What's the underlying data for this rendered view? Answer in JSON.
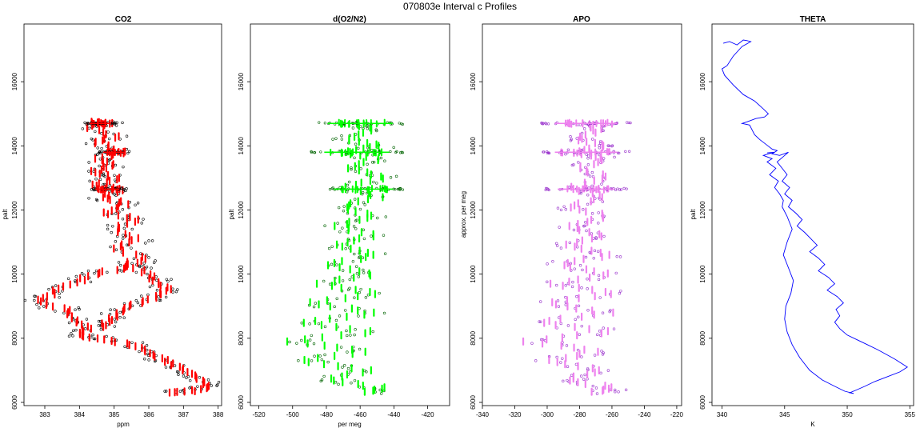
{
  "title": "070803e   Interval c Profiles",
  "chart_data": [
    {
      "type": "scatter",
      "title": "CO2",
      "xlabel": "ppm",
      "ylabel": "palt",
      "xlim": [
        382.4,
        388.1
      ],
      "ylim": [
        5900,
        17800
      ],
      "xticks": [
        "383",
        "384",
        "385",
        "386",
        "387",
        "388"
      ],
      "yticks": [
        "6000",
        "8000",
        "10000",
        "12000",
        "14000",
        "16000"
      ],
      "colors": {
        "mark": "#ff0000",
        "point": "#000000"
      },
      "segments": [
        {
          "start": [
            384.3,
            14750
          ],
          "path": [
            [
              385.0,
              14700
            ],
            [
              384.2,
              14600
            ],
            [
              385.1,
              14300
            ],
            [
              384.5,
              14100
            ],
            [
              385.3,
              13800
            ],
            [
              384.4,
              13600
            ],
            [
              385.0,
              13400
            ],
            [
              384.3,
              13200
            ],
            [
              385.1,
              13000
            ],
            [
              384.4,
              12800
            ],
            [
              385.2,
              12650
            ],
            [
              384.6,
              12400
            ],
            [
              385.4,
              12200
            ],
            [
              384.8,
              11900
            ],
            [
              385.7,
              11700
            ],
            [
              385.0,
              11400
            ],
            [
              385.7,
              11100
            ],
            [
              385.0,
              10800
            ],
            [
              385.9,
              10500
            ],
            [
              385.3,
              10200
            ],
            [
              384.4,
              10000
            ],
            [
              383.8,
              9700
            ],
            [
              383.2,
              9400
            ],
            [
              382.8,
              9150
            ],
            [
              383.6,
              8900
            ],
            [
              383.9,
              8600
            ],
            [
              384.2,
              8300
            ],
            [
              384.0,
              8100
            ],
            [
              384.8,
              7950
            ],
            [
              385.6,
              7750
            ],
            [
              386.1,
              7500
            ],
            [
              386.6,
              7250
            ],
            [
              387.0,
              7000
            ],
            [
              387.4,
              6750
            ],
            [
              387.8,
              6500
            ],
            [
              387.2,
              6350
            ],
            [
              386.6,
              6300
            ]
          ]
        },
        {
          "start": [
            385.2,
            10400
          ],
          "path": [
            [
              385.8,
              10100
            ],
            [
              386.2,
              9800
            ],
            [
              386.6,
              9550
            ],
            [
              386.2,
              9300
            ],
            [
              385.6,
              9050
            ],
            [
              385.2,
              8800
            ],
            [
              384.8,
              8550
            ],
            [
              384.5,
              8300
            ]
          ]
        }
      ],
      "bursts": [
        {
          "x": 384.6,
          "y": 14700,
          "width": 0.9,
          "count": 30
        },
        {
          "x": 385.0,
          "y": 13800,
          "width": 0.9,
          "count": 26
        },
        {
          "x": 384.8,
          "y": 12650,
          "width": 1.0,
          "count": 26
        }
      ]
    },
    {
      "type": "scatter",
      "title": "d(O2/N2)",
      "xlabel": "per meg",
      "ylabel": "palt",
      "xlim": [
        -525,
        -407
      ],
      "ylim": [
        5900,
        17800
      ],
      "xticks": [
        "-520",
        "-500",
        "-480",
        "-460",
        "-440",
        "-420"
      ],
      "yticks": [
        "6000",
        "8000",
        "10000",
        "12000",
        "14000",
        "16000"
      ],
      "colors": {
        "mark": "#00ff00",
        "point": "#006400"
      },
      "segments": [
        {
          "start": [
            -462,
            14700
          ],
          "path": [
            [
              -452,
              14500
            ],
            [
              -468,
              14200
            ],
            [
              -448,
              14000
            ],
            [
              -470,
              13800
            ],
            [
              -450,
              13600
            ],
            [
              -466,
              13300
            ],
            [
              -446,
              13000
            ],
            [
              -470,
              12700
            ],
            [
              -448,
              12400
            ],
            [
              -472,
              12100
            ],
            [
              -450,
              11800
            ],
            [
              -474,
              11500
            ],
            [
              -452,
              11200
            ],
            [
              -476,
              10900
            ],
            [
              -450,
              10600
            ],
            [
              -478,
              10300
            ],
            [
              -452,
              10000
            ],
            [
              -484,
              9700
            ],
            [
              -448,
              9400
            ],
            [
              -490,
              9100
            ],
            [
              -450,
              8800
            ],
            [
              -496,
              8500
            ],
            [
              -452,
              8200
            ],
            [
              -502,
              7900
            ],
            [
              -456,
              7600
            ],
            [
              -494,
              7300
            ],
            [
              -454,
              7000
            ],
            [
              -480,
              6700
            ],
            [
              -446,
              6450
            ],
            [
              -458,
              6300
            ]
          ]
        }
      ],
      "bursts": [
        {
          "x": -460,
          "y": 14700,
          "width": 55,
          "count": 30
        },
        {
          "x": -462,
          "y": 13800,
          "width": 55,
          "count": 26
        },
        {
          "x": -458,
          "y": 12650,
          "width": 50,
          "count": 26
        }
      ]
    },
    {
      "type": "scatter",
      "title": "APO",
      "xlabel": "",
      "ylabel": "approx. per meg",
      "xlim": [
        -340,
        -217
      ],
      "ylim": [
        5900,
        17800
      ],
      "xticks": [
        "-340",
        "-320",
        "-300",
        "-280",
        "-260",
        "-240",
        "-220"
      ],
      "yticks": [
        "6000",
        "8000",
        "10000",
        "12000",
        "14000",
        "16000"
      ],
      "colors": {
        "mark": "#ee82ee",
        "point": "#9932cc"
      },
      "segments": [
        {
          "start": [
            -276,
            14700
          ],
          "path": [
            [
              -268,
              14500
            ],
            [
              -282,
              14200
            ],
            [
              -264,
              14000
            ],
            [
              -284,
              13800
            ],
            [
              -266,
              13600
            ],
            [
              -280,
              13300
            ],
            [
              -262,
              13000
            ],
            [
              -286,
              12700
            ],
            [
              -264,
              12400
            ],
            [
              -286,
              12100
            ],
            [
              -262,
              11800
            ],
            [
              -288,
              11500
            ],
            [
              -264,
              11200
            ],
            [
              -290,
              10900
            ],
            [
              -262,
              10600
            ],
            [
              -292,
              10300
            ],
            [
              -262,
              10000
            ],
            [
              -296,
              9700
            ],
            [
              -258,
              9400
            ],
            [
              -302,
              9100
            ],
            [
              -262,
              8800
            ],
            [
              -306,
              8500
            ],
            [
              -262,
              8200
            ],
            [
              -312,
              7900
            ],
            [
              -268,
              7600
            ],
            [
              -300,
              7300
            ],
            [
              -266,
              7000
            ],
            [
              -290,
              6700
            ],
            [
              -258,
              6450
            ],
            [
              -274,
              6300
            ]
          ]
        }
      ],
      "bursts": [
        {
          "x": -276,
          "y": 14700,
          "width": 55,
          "count": 30
        },
        {
          "x": -276,
          "y": 13800,
          "width": 55,
          "count": 26
        },
        {
          "x": -276,
          "y": 12650,
          "width": 50,
          "count": 26
        }
      ]
    },
    {
      "type": "line",
      "title": "THETA",
      "xlabel": "K",
      "ylabel": "palt",
      "xlim": [
        339.2,
        355.3
      ],
      "ylim": [
        5900,
        17800
      ],
      "xticks": [
        "340",
        "345",
        "350",
        "355"
      ],
      "yticks": [
        "6000",
        "8000",
        "10000",
        "12000",
        "14000",
        "16000"
      ],
      "colors": {
        "line": "#0000ff"
      },
      "series": [
        {
          "x": [
            340.1,
            340.6,
            341.2,
            341.7,
            342.0,
            342.3,
            341.6,
            340.9,
            340.4,
            340.0,
            340.2,
            340.9,
            341.7,
            342.6,
            343.3,
            343.7,
            343.4,
            342.7,
            342.0,
            341.6,
            342.2,
            342.4,
            342.6,
            343.0,
            343.5,
            344.0,
            344.4,
            344.0,
            344.6,
            345.3,
            344.4,
            344.8,
            345.2,
            344.8,
            345.4,
            345.0,
            345.6,
            345.3,
            345.9,
            346.4,
            346.0,
            346.6,
            347.1,
            347.6,
            347.0,
            347.7,
            348.2,
            347.7,
            348.5,
            349.0,
            348.4,
            349.2,
            349.7,
            349.1,
            349.4,
            349.0,
            349.4,
            350.0,
            350.8,
            351.6,
            352.4,
            353.1,
            353.8,
            354.4,
            354.8,
            354.2,
            353.2,
            352.2,
            351.4,
            350.8,
            350.2,
            350.5
          ],
          "y": [
            17200,
            17250,
            17150,
            17300,
            17280,
            17250,
            17100,
            16800,
            16500,
            16400,
            16200,
            15900,
            15600,
            15400,
            15150,
            15000,
            14900,
            14850,
            14750,
            14700,
            14650,
            14500,
            14350,
            14200,
            14050,
            13900,
            13850,
            13750,
            13700,
            13800,
            13500,
            13300,
            13100,
            12900,
            12700,
            12500,
            12300,
            12100,
            11900,
            11700,
            11500,
            11300,
            11100,
            10900,
            10700,
            10500,
            10300,
            10100,
            9900,
            9700,
            9500,
            9300,
            9100,
            8900,
            8700,
            8500,
            8300,
            8100,
            7950,
            7800,
            7650,
            7500,
            7350,
            7200,
            7100,
            6950,
            6800,
            6650,
            6500,
            6400,
            6300,
            6280
          ]
        },
        {
          "x": [
            350.5,
            349.8,
            349.0,
            348.0,
            347.0,
            346.2,
            345.6,
            345.2,
            345.0,
            345.1,
            345.5,
            345.7,
            345.3,
            344.9,
            345.2,
            345.6,
            345.2,
            344.8,
            344.9,
            344.6,
            344.2,
            344.5,
            343.8,
            344.3,
            343.6,
            344.0,
            343.3,
            343.7,
            344.2,
            343.6
          ],
          "y": [
            6280,
            6350,
            6500,
            6700,
            7000,
            7400,
            7800,
            8200,
            8600,
            9000,
            9400,
            9800,
            10200,
            10600,
            11000,
            11400,
            11800,
            12100,
            12300,
            12500,
            12700,
            12900,
            13100,
            13300,
            13500,
            13600,
            13700,
            13750,
            13800,
            13780
          ]
        }
      ]
    }
  ]
}
